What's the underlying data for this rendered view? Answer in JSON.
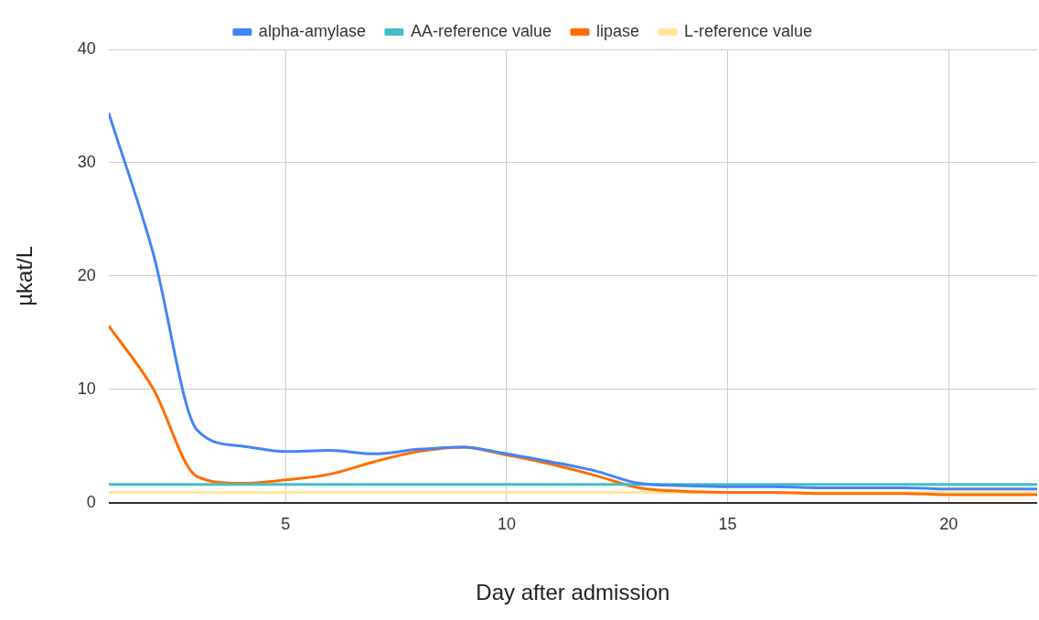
{
  "chart_data": {
    "type": "line",
    "xlabel": "Day after admission",
    "ylabel": "µkat/L",
    "x": [
      1,
      2,
      3,
      4,
      5,
      6,
      7,
      8,
      9,
      10,
      11,
      12,
      13,
      14,
      15,
      16,
      17,
      18,
      19,
      20,
      21,
      22
    ],
    "xlim": [
      1,
      22
    ],
    "xticks": [
      5,
      10,
      15,
      20
    ],
    "ylim": [
      0,
      40
    ],
    "yticks": [
      0,
      10,
      20,
      30,
      40
    ],
    "grid": true,
    "legend": "top",
    "marker": "none",
    "line_style": "solid",
    "series": [
      {
        "name": "alpha-amylase",
        "color": "#4285f4",
        "values": [
          34.4,
          22.1,
          6.4,
          5.0,
          4.5,
          4.6,
          4.3,
          4.7,
          4.9,
          4.3,
          3.6,
          2.8,
          1.7,
          1.5,
          1.4,
          1.4,
          1.3,
          1.3,
          1.3,
          1.2,
          1.2,
          1.2
        ]
      },
      {
        "name": "AA-reference value",
        "color": "#46bdc6",
        "values": [
          1.6,
          1.6,
          1.6,
          1.6,
          1.6,
          1.6,
          1.6,
          1.6,
          1.6,
          1.6,
          1.6,
          1.6,
          1.6,
          1.6,
          1.6,
          1.6,
          1.6,
          1.6,
          1.6,
          1.6,
          1.6,
          1.6
        ]
      },
      {
        "name": "lipase",
        "color": "#ff6d01",
        "values": [
          15.6,
          10.1,
          2.3,
          1.7,
          2.0,
          2.5,
          3.6,
          4.5,
          4.9,
          4.2,
          3.4,
          2.4,
          1.3,
          1.0,
          0.9,
          0.9,
          0.8,
          0.8,
          0.8,
          0.7,
          0.7,
          0.7
        ]
      },
      {
        "name": "L-reference value",
        "color": "#ffe599",
        "values": [
          0.9,
          0.9,
          0.9,
          0.9,
          0.9,
          0.9,
          0.9,
          0.9,
          0.9,
          0.9,
          0.9,
          0.9,
          0.9,
          0.9,
          0.9,
          0.9,
          0.9,
          0.9,
          0.9,
          0.9,
          0.9,
          0.9
        ]
      }
    ]
  }
}
